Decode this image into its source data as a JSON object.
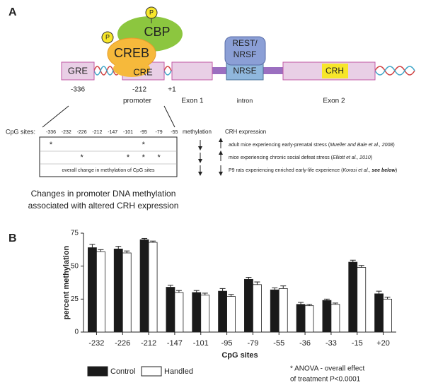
{
  "panel_a": {
    "label": "A",
    "p1": "P",
    "p2": "P",
    "cbp": "CBP",
    "creb": "CREB",
    "gre": "GRE",
    "cre": "CRE",
    "rest": [
      "REST/",
      "NRSF"
    ],
    "nrse": "NRSE",
    "crh": "CRH",
    "positions": [
      "-336",
      "-212",
      "+1"
    ],
    "regions": [
      "promoter",
      "Exon 1",
      "intron",
      "Exon 2"
    ],
    "table": {
      "row_label": "CpG sites:",
      "sites": [
        "-336",
        "-232",
        "-226",
        "-212",
        "-147",
        "-101",
        "-95",
        "-79",
        "-55"
      ],
      "rows": [
        [
          "*",
          null,
          null,
          null,
          null,
          null,
          "*",
          null,
          null
        ],
        [
          null,
          null,
          "*",
          null,
          null,
          "*",
          "*",
          "*",
          null
        ]
      ],
      "summary": "overall change in methylation of CpG sites"
    },
    "methylation_header": "methylation",
    "expression_header": "CRH expression",
    "studies": [
      {
        "text": "adult mice experiencing early-prenatal stress (",
        "cite": "Mueller and Bale et al., 2008",
        "end": ")"
      },
      {
        "text": "mice experiencing chronic social defeat stress (",
        "cite": "Elliott et al., 2010",
        "end": ")"
      },
      {
        "text": "P9 rats experiencing enriched early-life experience (",
        "cite": "Korosi et al., ",
        "bold": "see below",
        "end": ")"
      }
    ],
    "caption": [
      "Changes in promoter DNA methylation",
      "associated with altered  CRH expression"
    ]
  },
  "panel_b_label": "B",
  "chart_data": {
    "type": "bar",
    "y_label": "percent methylation",
    "x_label": "CpG sites",
    "categories": [
      "-232",
      "-226",
      "-212",
      "-147",
      "-101",
      "-95",
      "-79",
      "-55",
      "-36",
      "-33",
      "-15",
      "+20"
    ],
    "series": [
      {
        "name": "Control",
        "color": "#1a1a1a",
        "values": [
          64,
          63,
          70,
          34,
          30,
          31,
          40,
          32,
          21,
          24,
          53,
          29
        ],
        "errors": [
          2.5,
          2,
          1,
          1.5,
          1.5,
          2,
          1.5,
          1.5,
          1.5,
          1,
          1.5,
          2
        ]
      },
      {
        "name": "Handled",
        "color": "#ffffff",
        "values": [
          61,
          60,
          68,
          30,
          28,
          27,
          36,
          33,
          20,
          21,
          49,
          25
        ],
        "errors": [
          1.5,
          1.5,
          1,
          1.5,
          1.5,
          1.5,
          2,
          2,
          1,
          1,
          1.5,
          1.5
        ]
      }
    ],
    "ylim": [
      0,
      75
    ],
    "yticks": [
      0,
      25,
      50,
      75
    ],
    "grid": false,
    "annotation": [
      "* ANOVA - overall effect",
      "of treatment P<0.0001"
    ]
  }
}
